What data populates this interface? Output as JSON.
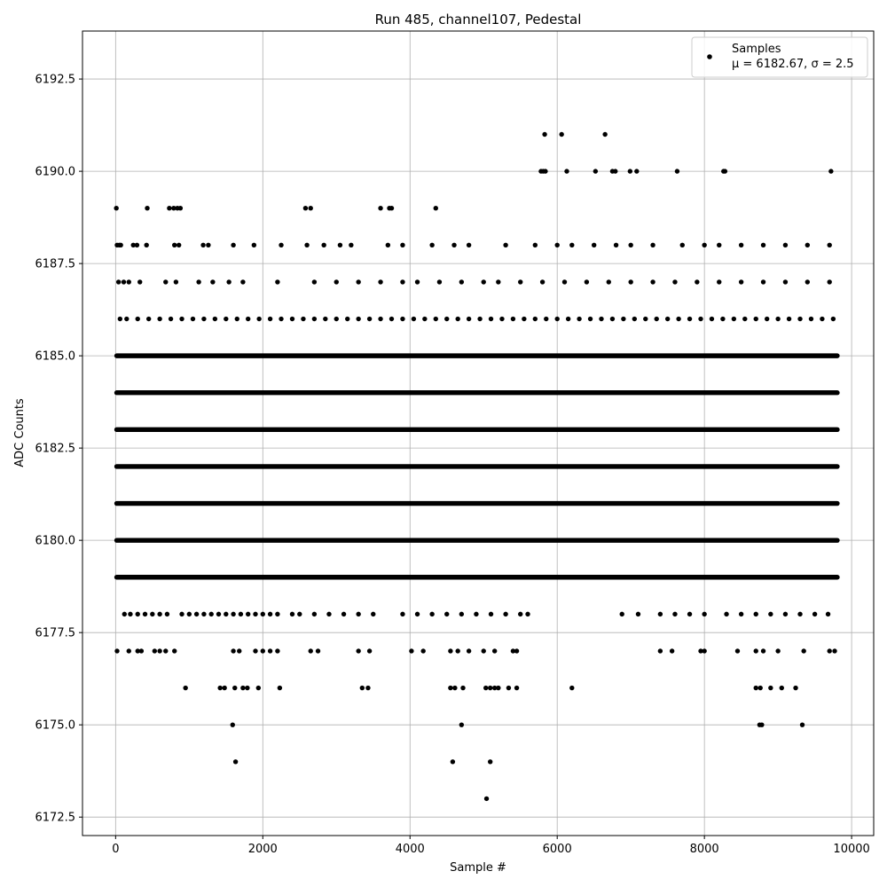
{
  "chart_data": {
    "type": "scatter",
    "title": "Run 485, channel107, Pedestal",
    "xlabel": "Sample #",
    "ylabel": "ADC Counts",
    "xlim": [
      -450,
      10300
    ],
    "ylim": [
      6172.0,
      6193.8
    ],
    "x_ticks": [
      0,
      2000,
      4000,
      6000,
      8000,
      10000
    ],
    "x_tick_labels": [
      "0",
      "2000",
      "4000",
      "6000",
      "8000",
      "10000"
    ],
    "y_ticks": [
      6172.5,
      6175.0,
      6177.5,
      6180.0,
      6182.5,
      6185.0,
      6187.5,
      6190.0,
      6192.5
    ],
    "y_tick_labels": [
      "6172.5",
      "6175.0",
      "6177.5",
      "6180.0",
      "6182.5",
      "6185.0",
      "6187.5",
      "6190.0",
      "6192.5"
    ],
    "grid": true,
    "legend": {
      "placement": "top-right",
      "entries": [
        "Samples",
        "μ = 6182.67, σ = 2.5"
      ]
    },
    "marker_color": "#000000",
    "series": [
      {
        "name": "Samples",
        "x_range": [
          0,
          9820
        ],
        "levels": [
          {
            "y": 6191,
            "x": [
              5830,
              6060,
              6650
            ]
          },
          {
            "y": 6190,
            "x": [
              5780,
              5810,
              5840,
              6130,
              6520,
              6750,
              6790,
              6990,
              7080,
              7630,
              8260,
              8280,
              9720
            ]
          },
          {
            "y": 6189,
            "x": [
              10,
              430,
              730,
              790,
              840,
              880,
              2580,
              2650,
              3600,
              3720,
              3750,
              4350
            ]
          },
          {
            "y": 6188,
            "x": [
              20,
              50,
              70,
              240,
              290,
              420,
              800,
              860,
              1190,
              1260,
              1600,
              1880,
              2250,
              2600,
              2830,
              3050,
              3200,
              3700,
              3900,
              4300,
              4600,
              4800,
              5300,
              5700,
              6000,
              6200,
              6500,
              6800,
              7000,
              7300,
              7700,
              8000,
              8200,
              8500,
              8800,
              9100,
              9400,
              9700
            ]
          },
          {
            "y": 6187,
            "x": [
              40,
              110,
              180,
              330,
              680,
              820,
              1130,
              1320,
              1540,
              1730,
              2200,
              2700,
              3000,
              3300,
              3600,
              3900,
              4100,
              4400,
              4700,
              5000,
              5200,
              5500,
              5800,
              6100,
              6400,
              6700,
              7000,
              7300,
              7600,
              7900,
              8200,
              8500,
              8800,
              9100,
              9400,
              9700
            ]
          },
          {
            "y": 6186,
            "x": [
              60,
              150,
              300,
              450,
              600,
              750,
              900,
              1050,
              1200,
              1350,
              1500,
              1650,
              1800,
              1950,
              2100,
              2250,
              2400,
              2550,
              2700,
              2850,
              3000,
              3150,
              3300,
              3450,
              3600,
              3750,
              3900,
              4050,
              4200,
              4350,
              4500,
              4650,
              4800,
              4950,
              5100,
              5250,
              5400,
              5550,
              5700,
              5850,
              6000,
              6150,
              6300,
              6450,
              6600,
              6750,
              6900,
              7050,
              7200,
              7350,
              7500,
              7650,
              7800,
              7950,
              8100,
              8250,
              8400,
              8550,
              8700,
              8850,
              9000,
              9150,
              9300,
              9450,
              9600,
              9750
            ]
          },
          {
            "y": 6185
          },
          {
            "y": 6184
          },
          {
            "y": 6183
          },
          {
            "y": 6182
          },
          {
            "y": 6181
          },
          {
            "y": 6180
          },
          {
            "y": 6179
          },
          {
            "y": 6178,
            "x": [
              120,
              200,
              300,
              400,
              500,
              600,
              700,
              900,
              1000,
              1100,
              1200,
              1300,
              1400,
              1500,
              1600,
              1700,
              1800,
              1900,
              2000,
              2100,
              2200,
              2400,
              2500,
              2700,
              2900,
              3100,
              3300,
              3500,
              3900,
              4100,
              4300,
              4500,
              4700,
              4900,
              5100,
              5300,
              5500,
              5600,
              6880,
              7100,
              7400,
              7600,
              7800,
              8000,
              8300,
              8500,
              8700,
              8900,
              9100,
              9300,
              9500,
              9680
            ]
          },
          {
            "y": 6177,
            "x": [
              20,
              180,
              300,
              350,
              530,
              600,
              680,
              800,
              1600,
              1680,
              1900,
              2000,
              2100,
              2200,
              2650,
              2750,
              3300,
              3450,
              4020,
              4180,
              4550,
              4650,
              4800,
              5000,
              5150,
              5400,
              5450,
              7400,
              7560,
              7950,
              8000,
              8450,
              8700,
              8800,
              9000,
              9350,
              9700,
              9770
            ]
          },
          {
            "y": 6176,
            "x": [
              950,
              1420,
              1480,
              1620,
              1730,
              1790,
              1940,
              2230,
              3350,
              3430,
              4550,
              4610,
              4720,
              5030,
              5090,
              5150,
              5200,
              5340,
              5450,
              6200,
              8700,
              8760,
              8900,
              9050,
              9240
            ]
          },
          {
            "y": 6175,
            "x": [
              1590,
              4700,
              8750,
              8780,
              9330
            ]
          },
          {
            "y": 6174,
            "x": [
              1630,
              4580,
              5090
            ]
          },
          {
            "y": 6173,
            "x": [
              5040
            ]
          }
        ]
      }
    ]
  }
}
